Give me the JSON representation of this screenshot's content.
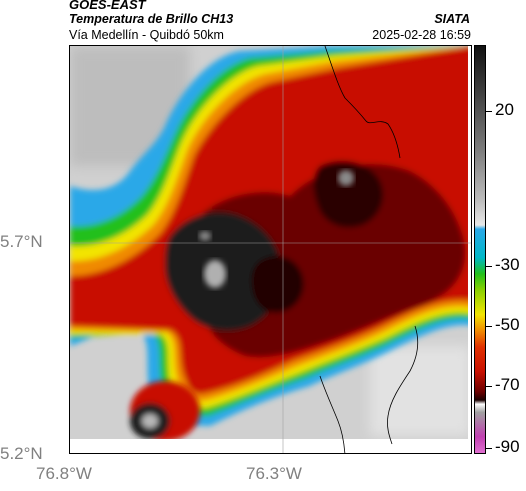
{
  "header": {
    "satellite": "GOES-EAST",
    "product": "Temperatura de Brillo CH13",
    "region": "Vía Medellín - Quibdó 50km",
    "organization": "SIATA",
    "datetime": "2025-02-28 16:59"
  },
  "axes": {
    "lat_labels": [
      "5.7°N",
      "5.2°N"
    ],
    "lon_labels": [
      "76.8°W",
      "76.3°W"
    ]
  },
  "colorbar": {
    "labels": [
      "20",
      "-30",
      "-50",
      "-70",
      "-90"
    ],
    "units_hint": "°C"
  },
  "colors": {
    "gray": "#c8c8c8",
    "light": "#e6e6e6",
    "cyan": "#2aa8e8",
    "green": "#22c01a",
    "yellow": "#f2e400",
    "orange": "#f08a00",
    "red": "#c81000",
    "darkred": "#6a0000",
    "black": "#1a1a1a"
  }
}
